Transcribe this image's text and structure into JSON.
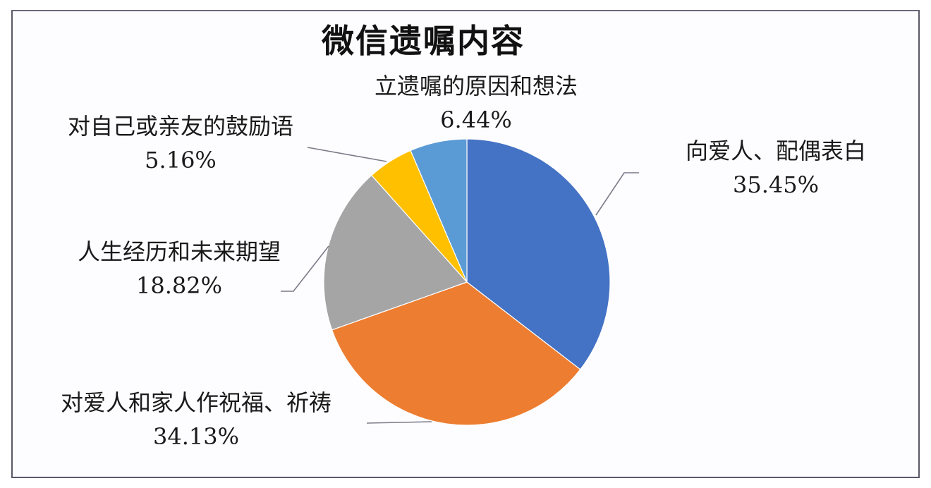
{
  "chart_data": {
    "type": "pie",
    "title": "微信遗嘱内容",
    "start_angle_deg": 0,
    "direction": "clockwise",
    "slices": [
      {
        "label": "向爱人、配偶表白",
        "value": 35.45,
        "display": "35.45%",
        "color": "#4472c4"
      },
      {
        "label": "对爱人和家人作祝福、祈祷",
        "value": 34.13,
        "display": "34.13%",
        "color": "#ed7d31"
      },
      {
        "label": "人生经历和未来期望",
        "value": 18.82,
        "display": "18.82%",
        "color": "#a5a5a5"
      },
      {
        "label": "对自己或亲友的鼓励语",
        "value": 5.16,
        "display": "5.16%",
        "color": "#ffc000"
      },
      {
        "label": "立遗嘱的原因和想法",
        "value": 6.44,
        "display": "6.44%",
        "color": "#5b9bd5"
      }
    ],
    "legend": "none",
    "data_labels": "category name and percentage with leader lines"
  },
  "labels": {
    "s0": {
      "name": "向爱人、配偶表白",
      "pct": "35.45%"
    },
    "s1": {
      "name": "对爱人和家人作祝福、祈祷",
      "pct": "34.13%"
    },
    "s2": {
      "name": "人生经历和未来期望",
      "pct": "18.82%"
    },
    "s3": {
      "name": "对自己或亲友的鼓励语",
      "pct": "5.16%"
    },
    "s4": {
      "name": "立遗嘱的原因和想法",
      "pct": "6.44%"
    }
  }
}
